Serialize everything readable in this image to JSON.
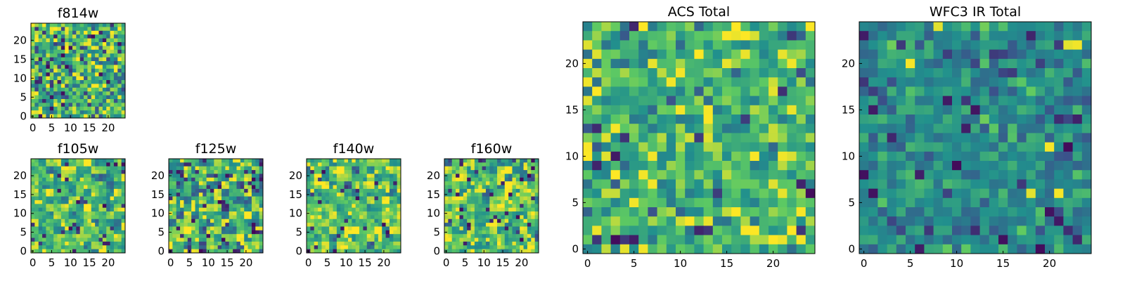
{
  "chart_data": [
    {
      "type": "heatmap",
      "title": "f814w",
      "xticks": [
        "0",
        "5",
        "10",
        "15",
        "20"
      ],
      "yticks": [
        "0",
        "5",
        "10",
        "15",
        "20"
      ],
      "grid_size": 25,
      "xlim": [
        0,
        25
      ],
      "ylim": [
        0,
        25
      ]
    },
    {
      "type": "heatmap",
      "title": "f105w",
      "xticks": [
        "0",
        "5",
        "10",
        "15",
        "20"
      ],
      "yticks": [
        "0",
        "5",
        "10",
        "15",
        "20"
      ],
      "grid_size": 25,
      "xlim": [
        0,
        25
      ],
      "ylim": [
        0,
        25
      ]
    },
    {
      "type": "heatmap",
      "title": "f125w",
      "xticks": [
        "0",
        "5",
        "10",
        "15",
        "20"
      ],
      "yticks": [
        "0",
        "5",
        "10",
        "15",
        "20"
      ],
      "grid_size": 25,
      "xlim": [
        0,
        25
      ],
      "ylim": [
        0,
        25
      ]
    },
    {
      "type": "heatmap",
      "title": "f140w",
      "xticks": [
        "0",
        "5",
        "10",
        "15",
        "20"
      ],
      "yticks": [
        "0",
        "5",
        "10",
        "15",
        "20"
      ],
      "grid_size": 25,
      "xlim": [
        0,
        25
      ],
      "ylim": [
        0,
        25
      ]
    },
    {
      "type": "heatmap",
      "title": "f160w",
      "xticks": [
        "0",
        "5",
        "10",
        "15",
        "20"
      ],
      "yticks": [
        "0",
        "5",
        "10",
        "15",
        "20"
      ],
      "grid_size": 25,
      "xlim": [
        0,
        25
      ],
      "ylim": [
        0,
        25
      ]
    },
    {
      "type": "heatmap",
      "title": "ACS Total",
      "xticks": [
        "0",
        "5",
        "10",
        "15",
        "20"
      ],
      "yticks": [
        "0",
        "5",
        "10",
        "15",
        "20"
      ],
      "grid_size": 25,
      "xlim": [
        0,
        25
      ],
      "ylim": [
        0,
        25
      ]
    },
    {
      "type": "heatmap",
      "title": "WFC3 IR Total",
      "xticks": [
        "0",
        "5",
        "10",
        "15",
        "20"
      ],
      "yticks": [
        "0",
        "5",
        "10",
        "15",
        "20"
      ],
      "grid_size": 25,
      "xlim": [
        0,
        25
      ],
      "ylim": [
        0,
        25
      ]
    }
  ],
  "colormap": [
    "#440154",
    "#3b528b",
    "#21908d",
    "#5dc963",
    "#fde725"
  ]
}
